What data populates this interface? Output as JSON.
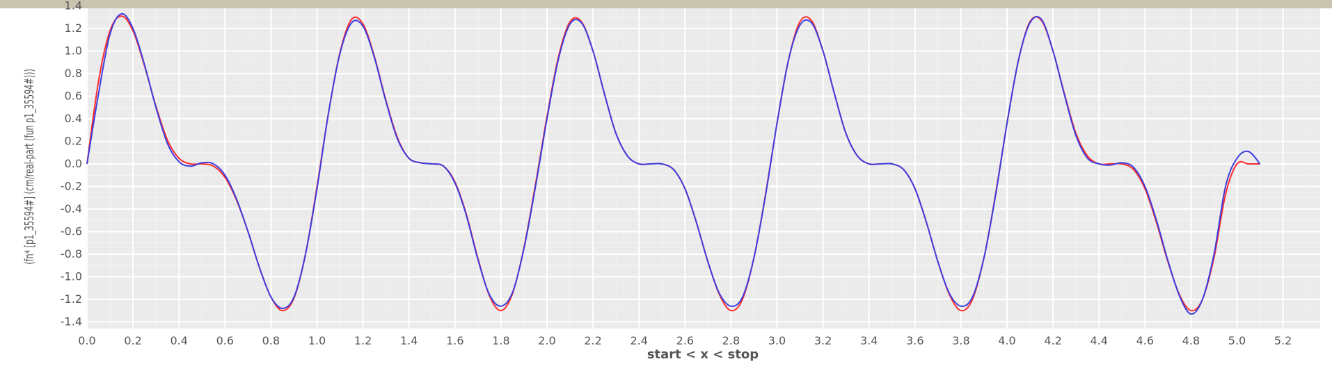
{
  "chart_data": {
    "type": "line",
    "xlabel": "start < x < stop",
    "ylabel": "(fn* [p1_35594#] (cm/real-part (fun p1_35594#)))",
    "xlim": [
      0.0,
      5.37
    ],
    "ylim": [
      -1.44,
      1.42
    ],
    "x_ticks": [
      "0.0",
      "0.2",
      "0.4",
      "0.6",
      "0.8",
      "1.0",
      "1.2",
      "1.4",
      "1.6",
      "1.8",
      "2.0",
      "2.2",
      "2.4",
      "2.6",
      "2.8",
      "3.0",
      "3.2",
      "3.4",
      "3.6",
      "3.8",
      "4.0",
      "4.2",
      "4.4",
      "4.6",
      "4.8",
      "5.0",
      "5.2"
    ],
    "y_ticks": [
      "1.4",
      "1.2",
      "1.0",
      "0.8",
      "0.6",
      "0.4",
      "0.2",
      "0.0",
      "-0.2",
      "-0.4",
      "-0.6",
      "-0.8",
      "-1.0",
      "-1.2",
      "-1.4"
    ],
    "grid": true,
    "colors": {
      "panel": "#ebebeb",
      "grid": "#ffffff",
      "text": "#555555",
      "header": "#c8c4b0"
    },
    "series": [
      {
        "color": "#ff2a2a",
        "x": [
          0.0,
          0.05,
          0.1,
          0.15,
          0.2,
          0.25,
          0.3,
          0.35,
          0.4,
          0.45,
          0.5,
          0.55,
          0.6,
          0.65,
          0.7,
          0.75,
          0.8,
          0.85,
          0.9,
          0.95,
          1.0,
          1.05,
          1.1,
          1.15,
          1.2,
          1.25,
          1.3,
          1.35,
          1.4,
          1.45,
          1.5,
          1.55,
          1.6,
          1.65,
          1.7,
          1.75,
          1.8,
          1.85,
          1.9,
          1.95,
          2.0,
          2.05,
          2.1,
          2.15,
          2.2,
          2.25,
          2.3,
          2.35,
          2.4,
          2.45,
          2.5,
          2.55,
          2.6,
          2.65,
          2.7,
          2.75,
          2.8,
          2.85,
          2.9,
          2.95,
          3.0,
          3.05,
          3.1,
          3.15,
          3.2,
          3.25,
          3.3,
          3.35,
          3.4,
          3.45,
          3.5,
          3.55,
          3.6,
          3.65,
          3.7,
          3.75,
          3.8,
          3.85,
          3.9,
          3.95,
          4.0,
          4.05,
          4.1,
          4.15,
          4.2,
          4.25,
          4.3,
          4.35,
          4.4,
          4.45,
          4.5,
          4.55,
          4.6,
          4.65,
          4.7,
          4.75,
          4.8,
          4.85,
          4.9,
          4.95,
          5.0,
          5.05,
          5.1
        ],
        "values": [
          0.0,
          0.73,
          1.18,
          1.31,
          1.18,
          0.87,
          0.51,
          0.21,
          0.05,
          0.0,
          0.0,
          -0.02,
          -0.12,
          -0.32,
          -0.6,
          -0.92,
          -1.18,
          -1.3,
          -1.19,
          -0.8,
          -0.2,
          0.45,
          0.99,
          1.28,
          1.24,
          0.95,
          0.56,
          0.23,
          0.05,
          0.01,
          0.0,
          -0.02,
          -0.16,
          -0.45,
          -0.84,
          -1.17,
          -1.3,
          -1.15,
          -0.74,
          -0.18,
          0.42,
          0.95,
          1.26,
          1.26,
          1.0,
          0.62,
          0.27,
          0.07,
          0.0,
          0.0,
          0.0,
          -0.05,
          -0.22,
          -0.52,
          -0.87,
          -1.16,
          -1.3,
          -1.2,
          -0.83,
          -0.27,
          0.36,
          0.92,
          1.26,
          1.27,
          1.0,
          0.62,
          0.27,
          0.07,
          0.0,
          0.0,
          0.0,
          -0.05,
          -0.22,
          -0.52,
          -0.87,
          -1.16,
          -1.3,
          -1.2,
          -0.83,
          -0.27,
          0.36,
          0.92,
          1.26,
          1.27,
          1.0,
          0.62,
          0.27,
          0.07,
          0.0,
          0.0,
          0.0,
          -0.05,
          -0.22,
          -0.52,
          -0.87,
          -1.16,
          -1.3,
          -1.2,
          -0.83,
          -0.27,
          0.0,
          0.0,
          0.0
        ]
      },
      {
        "color": "#3d3de0",
        "x": [
          0.0,
          0.05,
          0.1,
          0.15,
          0.2,
          0.25,
          0.3,
          0.35,
          0.4,
          0.45,
          0.5,
          0.55,
          0.6,
          0.65,
          0.7,
          0.75,
          0.8,
          0.85,
          0.9,
          0.95,
          1.0,
          1.05,
          1.1,
          1.15,
          1.2,
          1.25,
          1.3,
          1.35,
          1.4,
          1.45,
          1.5,
          1.55,
          1.6,
          1.65,
          1.7,
          1.75,
          1.8,
          1.85,
          1.9,
          1.95,
          2.0,
          2.05,
          2.1,
          2.15,
          2.2,
          2.25,
          2.3,
          2.35,
          2.4,
          2.45,
          2.5,
          2.55,
          2.6,
          2.65,
          2.7,
          2.75,
          2.8,
          2.85,
          2.9,
          2.95,
          3.0,
          3.05,
          3.1,
          3.15,
          3.2,
          3.25,
          3.3,
          3.35,
          3.4,
          3.45,
          3.5,
          3.55,
          3.6,
          3.65,
          3.7,
          3.75,
          3.8,
          3.85,
          3.9,
          3.95,
          4.0,
          4.05,
          4.1,
          4.15,
          4.2,
          4.25,
          4.3,
          4.35,
          4.4,
          4.45,
          4.5,
          4.55,
          4.6,
          4.65,
          4.7,
          4.75,
          4.8,
          4.85,
          4.9,
          4.95,
          5.0,
          5.05,
          5.1
        ],
        "values": [
          0.0,
          0.62,
          1.15,
          1.33,
          1.2,
          0.88,
          0.5,
          0.18,
          0.02,
          -0.02,
          0.01,
          0.0,
          -0.1,
          -0.31,
          -0.6,
          -0.92,
          -1.18,
          -1.28,
          -1.18,
          -0.8,
          -0.22,
          0.45,
          0.98,
          1.25,
          1.22,
          0.94,
          0.55,
          0.22,
          0.05,
          0.01,
          0.0,
          -0.02,
          -0.17,
          -0.46,
          -0.85,
          -1.16,
          -1.26,
          -1.14,
          -0.75,
          -0.2,
          0.4,
          0.93,
          1.24,
          1.25,
          1.0,
          0.62,
          0.27,
          0.07,
          0.0,
          0.0,
          0.0,
          -0.05,
          -0.22,
          -0.52,
          -0.87,
          -1.15,
          -1.26,
          -1.18,
          -0.83,
          -0.28,
          0.36,
          0.92,
          1.23,
          1.25,
          1.0,
          0.62,
          0.27,
          0.07,
          0.0,
          0.0,
          0.0,
          -0.05,
          -0.22,
          -0.52,
          -0.87,
          -1.15,
          -1.26,
          -1.18,
          -0.83,
          -0.28,
          0.36,
          0.92,
          1.25,
          1.28,
          1.0,
          0.61,
          0.25,
          0.05,
          0.0,
          -0.01,
          0.01,
          -0.03,
          -0.2,
          -0.5,
          -0.86,
          -1.17,
          -1.33,
          -1.2,
          -0.8,
          -0.2,
          0.05,
          0.11,
          0.0
        ]
      }
    ]
  }
}
